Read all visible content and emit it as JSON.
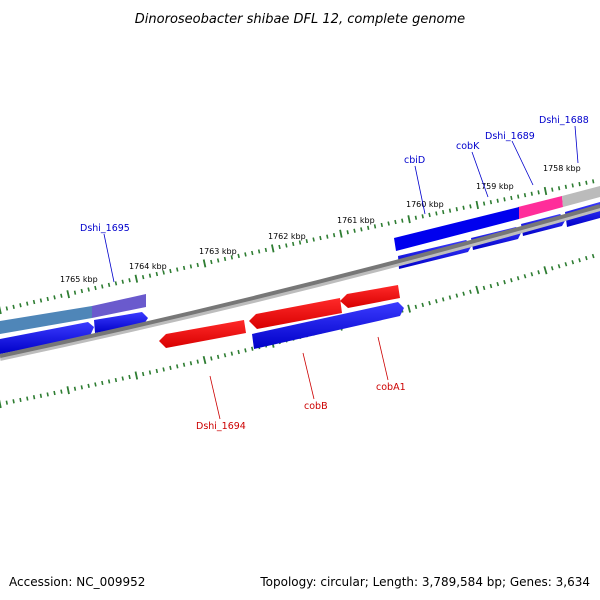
{
  "title": "Dinoroseobacter shibae DFL 12, complete genome",
  "footer": {
    "accession": "Accession: NC_009952",
    "summary": "Topology: circular; Length: 3,789,584 bp; Genes: 3,634"
  },
  "scale": {
    "ticks": [
      {
        "label": "1758 kbp"
      },
      {
        "label": "1759 kbp"
      },
      {
        "label": "1760 kbp"
      },
      {
        "label": "1761 kbp"
      },
      {
        "label": "1762 kbp"
      },
      {
        "label": "1763 kbp"
      },
      {
        "label": "1764 kbp"
      },
      {
        "label": "1765 kbp"
      }
    ]
  },
  "gene_labels": {
    "forward_strand": [
      {
        "label": "Dshi_1688",
        "color": "#0000cc"
      },
      {
        "label": "Dshi_1689",
        "color": "#0000cc"
      },
      {
        "label": "cobK",
        "color": "#0000cc"
      },
      {
        "label": "cbiD",
        "color": "#0000cc"
      },
      {
        "label": "Dshi_1695",
        "color": "#0000cc"
      }
    ],
    "reverse_strand": [
      {
        "label": "Dshi_1694",
        "color": "#cc0000"
      },
      {
        "label": "cobB",
        "color": "#cc0000"
      },
      {
        "label": "cobA1",
        "color": "#cc0000"
      }
    ]
  },
  "colors": {
    "forward_gene": "#0000ee",
    "reverse_gene": "#ee0000",
    "backbone": "#777777",
    "tick": "#2e7d32",
    "highlight_pink": "#ff2d9a",
    "highlight_purple": "#6a5acd",
    "highlight_steel": "#4f86b8",
    "highlight_grey": "#bbbbbb"
  }
}
